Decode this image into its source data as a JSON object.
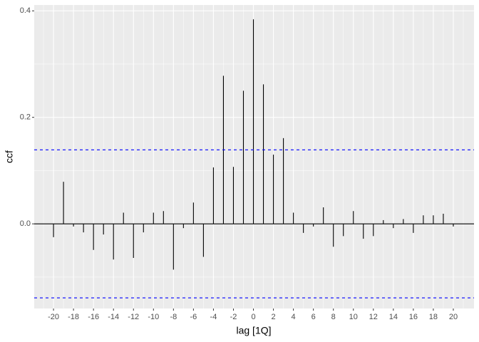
{
  "chart_data": {
    "type": "ccf",
    "x_label": "lag [1Q]",
    "y_label": "ccf",
    "x": [
      -20,
      -19,
      -18,
      -17,
      -16,
      -15,
      -14,
      -13,
      -12,
      -11,
      -10,
      -9,
      -8,
      -7,
      -6,
      -5,
      -4,
      -3,
      -2,
      -1,
      0,
      1,
      2,
      3,
      4,
      5,
      6,
      7,
      8,
      9,
      10,
      11,
      12,
      13,
      14,
      15,
      16,
      17,
      18,
      19,
      20
    ],
    "values": [
      -0.025,
      0.079,
      -0.005,
      -0.016,
      -0.049,
      -0.02,
      -0.067,
      0.021,
      -0.064,
      -0.016,
      0.021,
      0.024,
      -0.086,
      -0.008,
      0.04,
      -0.062,
      0.106,
      0.278,
      0.107,
      0.25,
      0.384,
      0.262,
      0.13,
      0.161,
      0.021,
      -0.017,
      -0.005,
      0.031,
      -0.043,
      -0.023,
      0.024,
      -0.028,
      -0.023,
      0.007,
      -0.008,
      0.009,
      -0.017,
      0.016,
      0.016,
      0.019,
      -0.005
    ],
    "color": "#000000",
    "ci_lines": [
      0.139,
      -0.139
    ],
    "ci_color": "#0000ff",
    "xlim": [
      -21.93,
      22.07
    ],
    "ylim": [
      -0.159,
      0.411
    ],
    "xticks": [
      -20,
      -18,
      -16,
      -14,
      -12,
      -10,
      -8,
      -6,
      -4,
      -2,
      0,
      2,
      4,
      6,
      8,
      10,
      12,
      14,
      16,
      18,
      20
    ],
    "yticks": [
      {
        "value": 0,
        "label": "0.0"
      },
      0.2,
      0.4
    ],
    "grid": true
  }
}
